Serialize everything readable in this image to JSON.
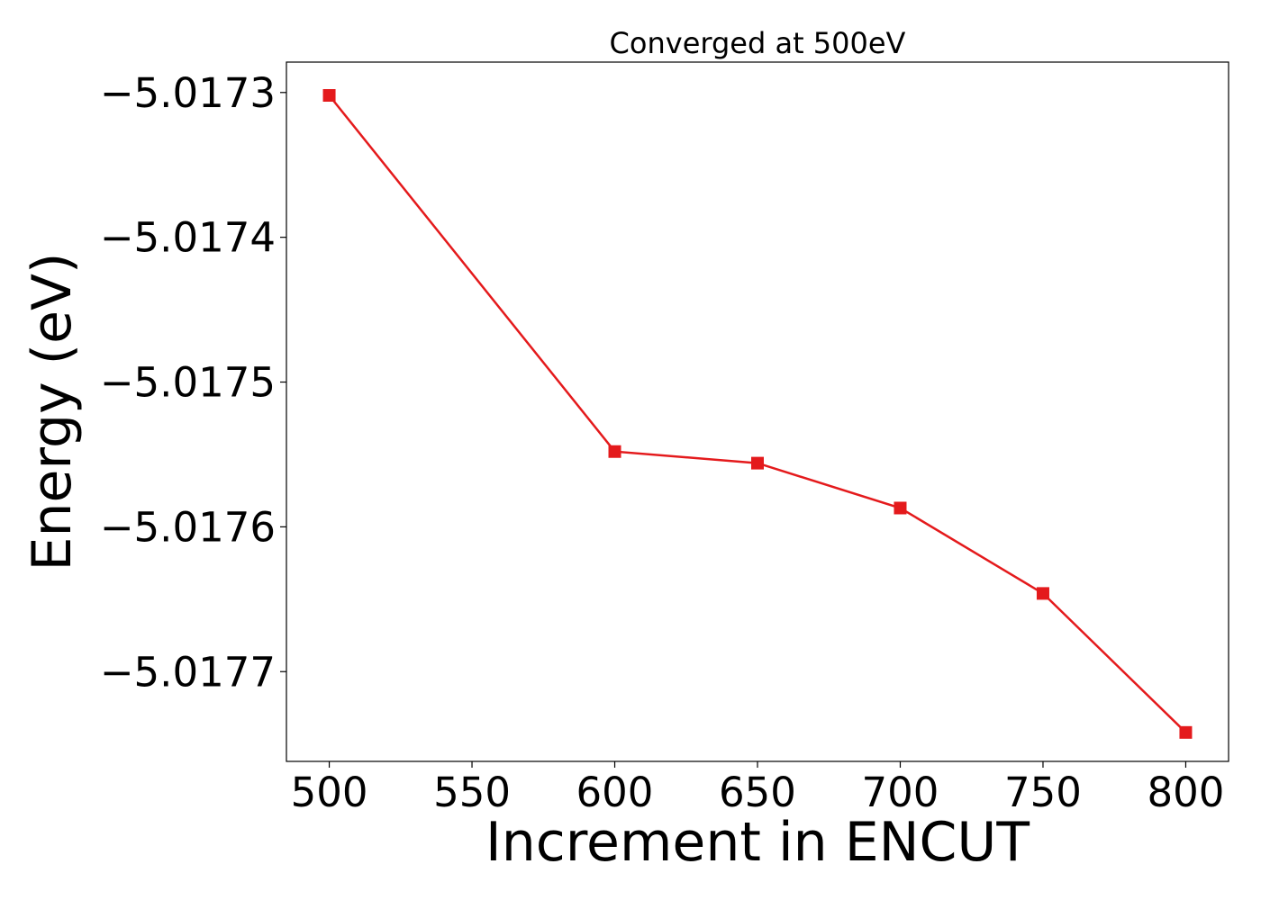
{
  "chart_data": {
    "type": "line",
    "title": "Converged at 500eV",
    "xlabel": "Increment in ENCUT",
    "ylabel": "Energy (eV)",
    "x": [
      500,
      600,
      650,
      700,
      750,
      800
    ],
    "series": [
      {
        "values": [
          -5.017302,
          -5.017548,
          -5.017556,
          -5.017587,
          -5.017646,
          -5.017742
        ],
        "color": "#e41a1c",
        "marker": "square"
      }
    ],
    "xlim": [
      485,
      815
    ],
    "ylim": [
      -5.017762,
      -5.017279
    ],
    "xticks": [
      500,
      550,
      600,
      650,
      700,
      750,
      800
    ],
    "xtick_labels": [
      "500",
      "550",
      "600",
      "650",
      "700",
      "750",
      "800"
    ],
    "yticks": [
      -5.0173,
      -5.0174,
      -5.0175,
      -5.0176,
      -5.0177
    ],
    "ytick_labels": [
      "−5.0173",
      "−5.0174",
      "−5.0175",
      "−5.0176",
      "−5.0177"
    ],
    "grid": false,
    "legend": false
  }
}
